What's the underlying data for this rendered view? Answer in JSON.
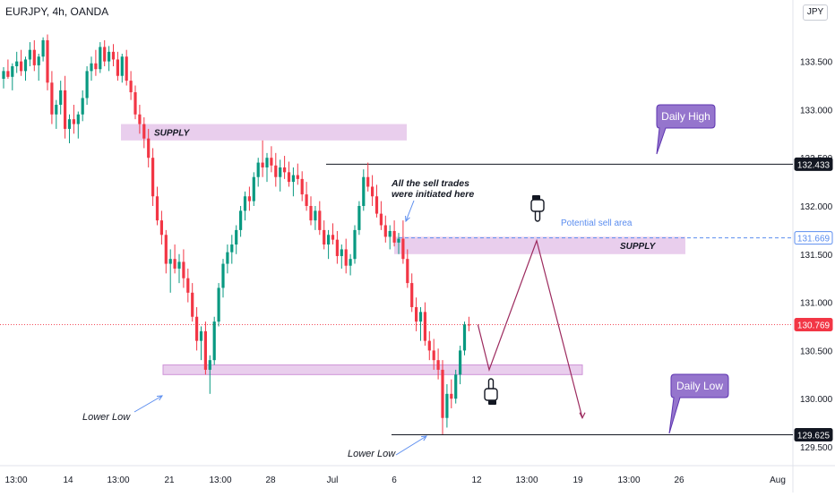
{
  "header": {
    "symbol_line": "EURJPY, 4h, OANDA",
    "currency": "JPY"
  },
  "colors": {
    "up": "#089981",
    "down": "#f23645",
    "zone": "#e1bee7",
    "zone_border": "#ce93d8",
    "callout": "#9575cd",
    "path": "#9c2a5e",
    "arrow": "#5b8def",
    "axis_text": "#131722"
  },
  "chart_data": {
    "type": "candlestick",
    "y_axis": {
      "range": [
        129.4,
        133.75
      ],
      "ticks": [
        "133.500",
        "133.000",
        "132.500",
        "132.000",
        "131.500",
        "131.000",
        "130.500",
        "130.000",
        "129.500"
      ]
    },
    "x_axis": {
      "ticks": [
        "13:00",
        "14",
        "13:00",
        "21",
        "13:00",
        "28",
        "Jul",
        "6",
        "12",
        "13:00",
        "19",
        "13:00",
        "26",
        "Aug"
      ]
    },
    "price_labels": [
      {
        "value": "132.433",
        "style": "dark"
      },
      {
        "value": "131.669",
        "style": "blue"
      },
      {
        "value": "130.769",
        "style": "red"
      },
      {
        "value": "129.625",
        "style": "dark"
      }
    ],
    "candles": [
      [
        133.32,
        133.44,
        133.22,
        133.4
      ],
      [
        133.4,
        133.52,
        133.32,
        133.34
      ],
      [
        133.34,
        133.48,
        133.2,
        133.45
      ],
      [
        133.45,
        133.6,
        133.38,
        133.5
      ],
      [
        133.5,
        133.62,
        133.35,
        133.4
      ],
      [
        133.4,
        133.55,
        133.3,
        133.52
      ],
      [
        133.52,
        133.7,
        133.45,
        133.62
      ],
      [
        133.62,
        133.72,
        133.4,
        133.46
      ],
      [
        133.46,
        133.58,
        133.3,
        133.55
      ],
      [
        133.55,
        133.75,
        133.5,
        133.72
      ],
      [
        133.72,
        133.78,
        133.2,
        133.28
      ],
      [
        133.28,
        133.4,
        132.85,
        132.95
      ],
      [
        132.95,
        133.1,
        132.8,
        133.05
      ],
      [
        133.05,
        133.3,
        132.95,
        133.2
      ],
      [
        133.2,
        133.35,
        132.7,
        132.8
      ],
      [
        132.8,
        132.95,
        132.65,
        132.9
      ],
      [
        132.9,
        133.05,
        132.75,
        132.85
      ],
      [
        132.85,
        132.98,
        132.7,
        132.95
      ],
      [
        132.95,
        133.2,
        132.88,
        133.12
      ],
      [
        133.12,
        133.45,
        133.05,
        133.4
      ],
      [
        133.4,
        133.55,
        133.3,
        133.48
      ],
      [
        133.48,
        133.62,
        133.35,
        133.42
      ],
      [
        133.42,
        133.7,
        133.38,
        133.65
      ],
      [
        133.65,
        133.72,
        133.45,
        133.5
      ],
      [
        133.5,
        133.66,
        133.4,
        133.6
      ],
      [
        133.6,
        133.68,
        133.45,
        133.52
      ],
      [
        133.52,
        133.6,
        133.3,
        133.35
      ],
      [
        133.35,
        133.58,
        133.28,
        133.55
      ],
      [
        133.55,
        133.62,
        133.25,
        133.3
      ],
      [
        133.3,
        133.4,
        133.1,
        133.18
      ],
      [
        133.18,
        133.25,
        132.9,
        132.95
      ],
      [
        132.95,
        133.05,
        132.75,
        132.85
      ],
      [
        132.85,
        132.92,
        132.6,
        132.7
      ],
      [
        132.7,
        132.8,
        132.4,
        132.5
      ],
      [
        132.5,
        132.6,
        132.0,
        132.1
      ],
      [
        132.1,
        132.2,
        131.8,
        131.85
      ],
      [
        131.85,
        131.95,
        131.6,
        131.7
      ],
      [
        131.7,
        131.75,
        131.3,
        131.4
      ],
      [
        131.4,
        131.55,
        131.1,
        131.45
      ],
      [
        131.45,
        131.6,
        131.3,
        131.35
      ],
      [
        131.35,
        131.5,
        131.2,
        131.42
      ],
      [
        131.42,
        131.55,
        131.15,
        131.25
      ],
      [
        131.25,
        131.35,
        131.0,
        131.1
      ],
      [
        131.1,
        131.2,
        130.8,
        130.85
      ],
      [
        130.85,
        130.95,
        130.5,
        130.6
      ],
      [
        130.6,
        130.75,
        130.4,
        130.7
      ],
      [
        130.7,
        130.8,
        130.25,
        130.3
      ],
      [
        130.3,
        130.45,
        130.05,
        130.4
      ],
      [
        130.4,
        130.85,
        130.35,
        130.8
      ],
      [
        130.8,
        131.2,
        130.75,
        131.15
      ],
      [
        131.15,
        131.45,
        131.05,
        131.4
      ],
      [
        131.4,
        131.6,
        131.3,
        131.52
      ],
      [
        131.52,
        131.7,
        131.4,
        131.6
      ],
      [
        131.6,
        131.8,
        131.5,
        131.75
      ],
      [
        131.75,
        132.0,
        131.68,
        131.95
      ],
      [
        131.95,
        132.15,
        131.85,
        132.1
      ],
      [
        132.1,
        132.2,
        131.95,
        132.05
      ],
      [
        132.05,
        132.35,
        132.0,
        132.3
      ],
      [
        132.3,
        132.5,
        132.2,
        132.45
      ],
      [
        132.45,
        132.68,
        132.3,
        132.4
      ],
      [
        132.4,
        132.55,
        132.25,
        132.5
      ],
      [
        132.5,
        132.62,
        132.35,
        132.42
      ],
      [
        132.42,
        132.55,
        132.2,
        132.3
      ],
      [
        132.3,
        132.48,
        132.15,
        132.4
      ],
      [
        132.4,
        132.52,
        132.28,
        132.35
      ],
      [
        132.35,
        132.46,
        132.2,
        132.25
      ],
      [
        132.25,
        132.4,
        132.1,
        132.32
      ],
      [
        132.32,
        132.44,
        132.22,
        132.28
      ],
      [
        132.28,
        132.36,
        132.05,
        132.12
      ],
      [
        132.12,
        132.25,
        131.95,
        132.0
      ],
      [
        132.0,
        132.1,
        131.8,
        131.85
      ],
      [
        131.85,
        132.0,
        131.75,
        131.95
      ],
      [
        131.95,
        132.05,
        131.7,
        131.75
      ],
      [
        131.75,
        131.85,
        131.55,
        131.6
      ],
      [
        131.6,
        131.75,
        131.45,
        131.7
      ],
      [
        131.7,
        131.82,
        131.6,
        131.65
      ],
      [
        131.65,
        131.74,
        131.4,
        131.48
      ],
      [
        131.48,
        131.6,
        131.35,
        131.55
      ],
      [
        131.55,
        131.66,
        131.3,
        131.38
      ],
      [
        131.38,
        131.5,
        131.28,
        131.45
      ],
      [
        131.45,
        131.8,
        131.4,
        131.75
      ],
      [
        131.75,
        132.05,
        131.7,
        132.0
      ],
      [
        132.0,
        132.38,
        131.95,
        132.3
      ],
      [
        132.3,
        132.45,
        132.15,
        132.2
      ],
      [
        132.2,
        132.32,
        132.0,
        132.1
      ],
      [
        132.1,
        132.22,
        131.88,
        131.92
      ],
      [
        131.92,
        132.05,
        131.75,
        131.8
      ],
      [
        131.8,
        131.9,
        131.62,
        131.68
      ],
      [
        131.68,
        131.8,
        131.55,
        131.74
      ],
      [
        131.74,
        131.85,
        131.58,
        131.62
      ],
      [
        131.62,
        131.72,
        131.5,
        131.66
      ],
      [
        131.66,
        131.85,
        131.4,
        131.45
      ],
      [
        131.45,
        131.55,
        131.15,
        131.2
      ],
      [
        131.2,
        131.3,
        130.9,
        130.95
      ],
      [
        130.95,
        131.05,
        130.7,
        130.8
      ],
      [
        130.8,
        130.95,
        130.6,
        130.9
      ],
      [
        130.9,
        131.0,
        130.55,
        130.6
      ],
      [
        130.6,
        130.7,
        130.4,
        130.5
      ],
      [
        130.5,
        130.62,
        130.3,
        130.4
      ],
      [
        130.4,
        130.52,
        130.2,
        130.3
      ],
      [
        130.3,
        130.4,
        129.63,
        129.8
      ],
      [
        129.8,
        130.15,
        129.7,
        130.05
      ],
      [
        130.05,
        130.2,
        129.9,
        130.0
      ],
      [
        130.0,
        130.3,
        129.95,
        130.25
      ],
      [
        130.25,
        130.55,
        130.15,
        130.5
      ],
      [
        130.5,
        130.8,
        130.45,
        130.77
      ],
      [
        130.77,
        130.85,
        130.7,
        130.76
      ]
    ],
    "zones": [
      {
        "label": "SUPPLY",
        "top": 132.85,
        "bottom": 132.68
      },
      {
        "label": "SUPPLY",
        "top": 131.68,
        "bottom": 131.5
      },
      {
        "label": "",
        "top": 130.35,
        "bottom": 130.25
      }
    ],
    "levels": [
      {
        "name": "daily-high",
        "value": 132.433
      },
      {
        "name": "potential-sell",
        "value": 131.669
      },
      {
        "name": "current-price",
        "value": 130.769
      },
      {
        "name": "daily-low",
        "value": 129.625
      }
    ],
    "projection_path": [
      130.769,
      130.3,
      131.64,
      129.8
    ],
    "annotations": {
      "daily_high": "Daily High",
      "daily_low": "Daily Low",
      "sell_trades": [
        "All the sell trades",
        "were initiated here"
      ],
      "potential_sell": "Potential sell area",
      "lower_low": "Lower Low"
    }
  }
}
